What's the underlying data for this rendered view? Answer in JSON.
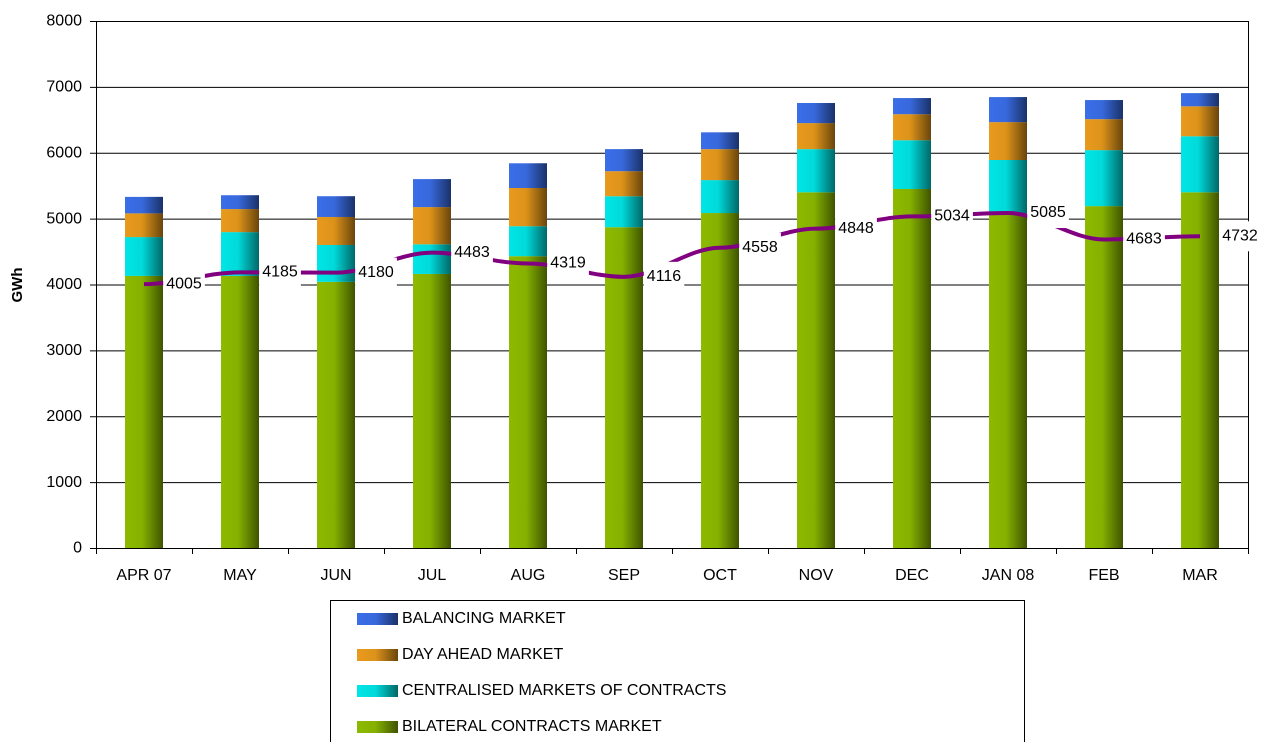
{
  "chart_data": {
    "type": "stacked-bar-line",
    "y_label": "GWh",
    "categories": [
      "APR 07",
      "MAY",
      "JUN",
      "JUL",
      "AUG",
      "SEP",
      "OCT",
      "NOV",
      "DEC",
      "JAN 08",
      "FEB",
      "MAR"
    ],
    "series": [
      {
        "name": "BILATERAL CONTRACTS MARKET",
        "color": "#8cba00",
        "values": [
          4130,
          4130,
          4040,
          4160,
          4430,
          4870,
          5085,
          5400,
          5450,
          5080,
          5190,
          5400
        ]
      },
      {
        "name": "CENTRALISED MARKETS OF CONTRACTS",
        "color": "#00e5e5",
        "values": [
          590,
          665,
          560,
          450,
          455,
          470,
          500,
          655,
          740,
          810,
          850,
          850
        ]
      },
      {
        "name": "DAY AHEAD MARKET",
        "color": "#e89a1c",
        "values": [
          360,
          350,
          425,
          565,
          580,
          380,
          470,
          395,
          395,
          575,
          470,
          455
        ]
      },
      {
        "name": "BALANCING MARKET",
        "color": "#3a6ee8",
        "values": [
          250,
          210,
          315,
          425,
          375,
          335,
          255,
          305,
          245,
          380,
          290,
          200
        ]
      }
    ],
    "line": {
      "color": "#800080",
      "label_color": "#993300",
      "values": [
        4005,
        4185,
        4180,
        4483,
        4319,
        4116,
        4558,
        4848,
        5034,
        5085,
        4683,
        4732
      ]
    },
    "ylim": [
      0,
      8000
    ],
    "yticks": [
      0,
      1000,
      2000,
      3000,
      4000,
      5000,
      6000,
      7000,
      8000
    ],
    "grid": true
  }
}
